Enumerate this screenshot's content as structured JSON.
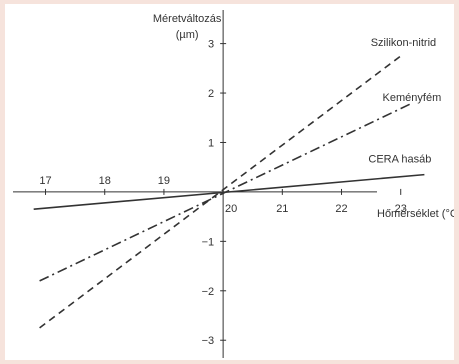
{
  "chart_data": {
    "type": "line",
    "title": "",
    "ylabel": "Méretváltozás",
    "yunit": "(µm)",
    "xlabel": "Hőmérséklet (°C)",
    "xlim": [
      16.4,
      23.9
    ],
    "ylim": [
      -3.4,
      3.7
    ],
    "x_ticks": [
      17,
      18,
      19,
      20,
      21,
      22,
      23
    ],
    "x_tick_labels": [
      "17",
      "18",
      "19",
      "20",
      "21",
      "22",
      "23"
    ],
    "y_ticks": [
      -3,
      -2,
      -1,
      1,
      2,
      3
    ],
    "y_tick_labels": [
      "−3",
      "−2",
      "−1",
      "1",
      "2",
      "3"
    ],
    "series": [
      {
        "name": "Szilikon-nitrid",
        "style": "dashed",
        "x": [
          16.9,
          23.0
        ],
        "y": [
          -2.75,
          2.75
        ]
      },
      {
        "name": "Keményfém",
        "style": "dashdot",
        "x": [
          16.9,
          23.2
        ],
        "y": [
          -1.8,
          1.8
        ]
      },
      {
        "name": "CERA hasáb",
        "style": "solid",
        "x": [
          16.8,
          23.4
        ],
        "y": [
          -0.35,
          0.35
        ]
      }
    ],
    "colors": {
      "line": "#333333",
      "frame": "#f6e3dc",
      "plot": "#ffffff"
    }
  }
}
